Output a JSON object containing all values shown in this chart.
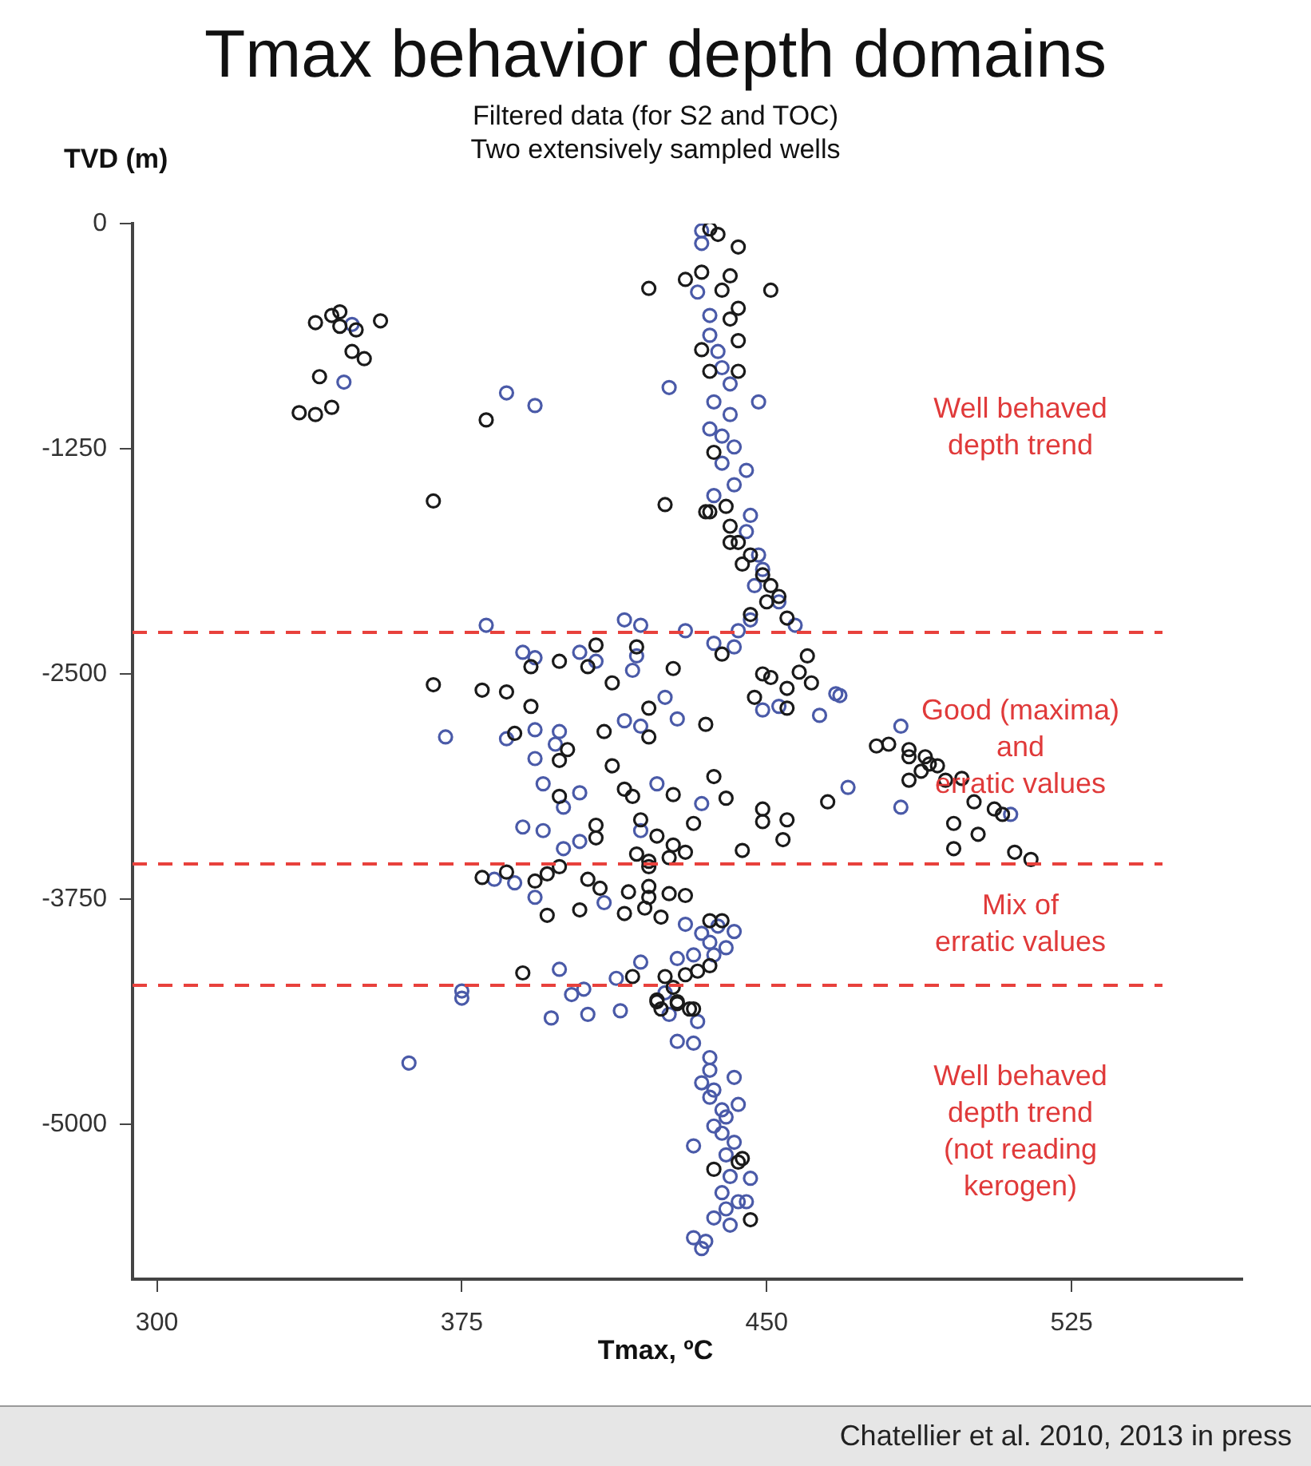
{
  "chart_data": {
    "type": "scatter",
    "title": "Tmax behavior depth domains",
    "subtitle": "Filtered data (for S2 and TOC)\nTwo extensively sampled wells",
    "xlabel": "Tmax, ºC",
    "ylabel": "TVD (m)",
    "xlim": [
      294,
      567
    ],
    "ylim": [
      -5860,
      0
    ],
    "xticks": [
      300,
      375,
      450,
      525
    ],
    "yticks": [
      0,
      -1250,
      -2500,
      -3750,
      -5000
    ],
    "grid": false,
    "legend": false,
    "marker": "circle",
    "series": [
      {
        "color": "#1a1a1a",
        "x": [
          339,
          343,
          345,
          345,
          349,
          355,
          348,
          351,
          340,
          335,
          339,
          343,
          381,
          368,
          421,
          425,
          430,
          436,
          438,
          443,
          434,
          441,
          451,
          439,
          443,
          441,
          443,
          434,
          436,
          443,
          437,
          435,
          440,
          441,
          443,
          446,
          444,
          449,
          451,
          450,
          453,
          446,
          455,
          441,
          436,
          368,
          380,
          386,
          392,
          392,
          399,
          408,
          406,
          412,
          418,
          421,
          388,
          401,
          399,
          410,
          421,
          412,
          399,
          415,
          417,
          408,
          408,
          419,
          423,
          418,
          421,
          380,
          386,
          393,
          396,
          399,
          406,
          409,
          416,
          421,
          421,
          415,
          404,
          396,
          424,
          390,
          417,
          425,
          423,
          439,
          427,
          449,
          451,
          460,
          458,
          461,
          455,
          447,
          455,
          435,
          437,
          427,
          440,
          449,
          449,
          455,
          454,
          432,
          465,
          444,
          477,
          480,
          485,
          485,
          489,
          490,
          488,
          492,
          485,
          494,
          498,
          501,
          506,
          508,
          496,
          502,
          496,
          511,
          515,
          427,
          430,
          421,
          426,
          426,
          430,
          420,
          436,
          439,
          433,
          430,
          428,
          431,
          427,
          423,
          424,
          428,
          432,
          436,
          444,
          437,
          443,
          446
        ],
        "values": [
          -550,
          -510,
          -490,
          -570,
          -590,
          -540,
          -710,
          -750,
          -850,
          -1050,
          -1060,
          -1020,
          -1090,
          -1540,
          -360,
          -1560,
          -310,
          -30,
          -60,
          -130,
          -270,
          -290,
          -370,
          -370,
          -470,
          -530,
          -650,
          -700,
          -820,
          -820,
          -1270,
          -1600,
          -1570,
          -1680,
          -1770,
          -1840,
          -1890,
          -1950,
          -2010,
          -2100,
          -2070,
          -2170,
          -2190,
          -1770,
          -1600,
          -2560,
          -2590,
          -2600,
          -2680,
          -2460,
          -2430,
          -2340,
          -2460,
          -2550,
          -2350,
          -2690,
          -2830,
          -2920,
          -2980,
          -2820,
          -2850,
          -3010,
          -3180,
          -3140,
          -3180,
          -3340,
          -3410,
          -3310,
          -3400,
          -3500,
          -3540,
          -3630,
          -3600,
          -3650,
          -3610,
          -3570,
          -3640,
          -3690,
          -3710,
          -3680,
          -3740,
          -3830,
          -3810,
          -3840,
          -3850,
          -4160,
          -4180,
          -4180,
          -4320,
          -2390,
          -2470,
          -2500,
          -2520,
          -2400,
          -2490,
          -2550,
          -2580,
          -2630,
          -2690,
          -2780,
          -3070,
          -3170,
          -3190,
          -3250,
          -3320,
          -3310,
          -3420,
          -3330,
          -3210,
          -3480,
          -2900,
          -2890,
          -2920,
          -2960,
          -2960,
          -3000,
          -3040,
          -3010,
          -3090,
          -3090,
          -3080,
          -3210,
          -3250,
          -3280,
          -3330,
          -3390,
          -3470,
          -3490,
          -3530,
          -3450,
          -3490,
          -3570,
          -3520,
          -3720,
          -3730,
          -3800,
          -3870,
          -3870,
          -4150,
          -4170,
          -4330,
          -4360,
          -4240,
          -4310,
          -4360,
          -4320,
          -4360,
          -4120,
          -5190,
          -5250,
          -5210,
          -5530
        ]
      },
      {
        "color": "#4a5aa8",
        "x": [
          348,
          346,
          386,
          393,
          426,
          381,
          415,
          419,
          434,
          434,
          433,
          436,
          436,
          438,
          439,
          441,
          448,
          437,
          441,
          436,
          439,
          442,
          439,
          445,
          442,
          437,
          446,
          445,
          448,
          449,
          447,
          453,
          457,
          443,
          430,
          390,
          393,
          404,
          408,
          417,
          418,
          371,
          386,
          393,
          399,
          398,
          393,
          415,
          419,
          395,
          404,
          400,
          390,
          395,
          404,
          400,
          423,
          419,
          383,
          388,
          393,
          410,
          419,
          399,
          413,
          375,
          375,
          405,
          402,
          397,
          406,
          414,
          362,
          446,
          437,
          442,
          425,
          428,
          449,
          453,
          463,
          467,
          468,
          483,
          434,
          470,
          483,
          510,
          430,
          434,
          438,
          442,
          436,
          440,
          432,
          428,
          437,
          425,
          426,
          428,
          432,
          433,
          436,
          436,
          434,
          437,
          442,
          436,
          439,
          443,
          440,
          437,
          432,
          442,
          439,
          441,
          446,
          439,
          443,
          440,
          445,
          437,
          441,
          432,
          435,
          434,
          440
        ],
        "values": [
          -560,
          -880,
          -940,
          -1010,
          -910,
          -2230,
          -2200,
          -2230,
          -40,
          -110,
          -380,
          -510,
          -620,
          -710,
          -800,
          -890,
          -990,
          -990,
          -1060,
          -1140,
          -1180,
          -1240,
          -1330,
          -1370,
          -1450,
          -1510,
          -1620,
          -1710,
          -1840,
          -1920,
          -2010,
          -2100,
          -2230,
          -2260,
          -2260,
          -2380,
          -2410,
          -2380,
          -2430,
          -2480,
          -2400,
          -2850,
          -2860,
          -2810,
          -2820,
          -2890,
          -2970,
          -2760,
          -2790,
          -3110,
          -3160,
          -3240,
          -3350,
          -3370,
          -3430,
          -3470,
          -3110,
          -3370,
          -3640,
          -3660,
          -3740,
          -3770,
          -4100,
          -4140,
          -4190,
          -4260,
          -4300,
          -4250,
          -4280,
          -4410,
          -4390,
          -4370,
          -4660,
          -2200,
          -2330,
          -2350,
          -2630,
          -2750,
          -2700,
          -2680,
          -2730,
          -2610,
          -2620,
          -2790,
          -3220,
          -3130,
          -3240,
          -3280,
          -3890,
          -3940,
          -3900,
          -3930,
          -3990,
          -4020,
          -4060,
          -4080,
          -4060,
          -4270,
          -4390,
          -4540,
          -4550,
          -4430,
          -4630,
          -4700,
          -4770,
          -4810,
          -4740,
          -4850,
          -4920,
          -4890,
          -4960,
          -5010,
          -5120,
          -5100,
          -5050,
          -5290,
          -5300,
          -5380,
          -5430,
          -5470,
          -5430,
          -5520,
          -5560,
          -5630,
          -5650,
          -5690,
          -5170
        ]
      }
    ],
    "ref_lines": [
      {
        "axis": "y",
        "value": -2270,
        "color": "#e8413c",
        "line_style": "dashed"
      },
      {
        "axis": "y",
        "value": -3555,
        "color": "#e8413c",
        "line_style": "dashed"
      },
      {
        "axis": "y",
        "value": -4229,
        "color": "#e8413c",
        "line_style": "dashed"
      }
    ],
    "annotations": [
      "Well behaved\ndepth trend",
      "Good (maxima)\nand\nerratic values",
      "Mix of\nerratic values",
      "Well behaved\ndepth trend\n(not reading\nkerogen)",
      "Chatellier et al. 2010, 2013 in press"
    ]
  }
}
